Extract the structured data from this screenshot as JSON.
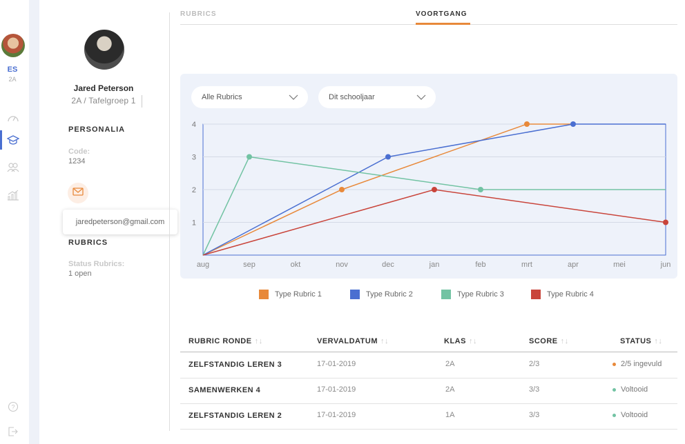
{
  "rail": {
    "initials": "ES",
    "class": "2A",
    "icons": [
      "dashboard-icon",
      "rubrics-icon",
      "group-icon",
      "stats-icon",
      "help-icon",
      "logout-icon"
    ]
  },
  "profile": {
    "name": "Jared Peterson",
    "class": "2A",
    "group": "Tafelgroep 1",
    "personalia_title": "PERSONALIA",
    "code_label": "Code:",
    "code_value": "1234",
    "email": "jaredpeterson@gmail.com",
    "rubrics_title": "RUBRICS",
    "status_label": "Status Rubrics:",
    "status_value": "1 open"
  },
  "tabs": [
    {
      "label": "RUBRICS",
      "active": false
    },
    {
      "label": "VOORTGANG",
      "active": true
    }
  ],
  "filters": {
    "rubric": "Alle Rubrics",
    "period": "Dit schooljaar"
  },
  "colors": {
    "accent": "#e8893a",
    "series1": "#e8893a",
    "series2": "#4a6fd1",
    "series3": "#72c3a3",
    "series4": "#c9443a"
  },
  "chart_data": {
    "type": "line",
    "categories": [
      "aug",
      "sep",
      "okt",
      "nov",
      "dec",
      "jan",
      "feb",
      "mrt",
      "apr",
      "mei",
      "jun"
    ],
    "ylim": [
      0,
      4
    ],
    "yticks": [
      1,
      2,
      3,
      4
    ],
    "grid": true,
    "legend_position": "bottom",
    "series": [
      {
        "name": "Type Rubric 1",
        "points": [
          [
            "aug",
            0
          ],
          [
            "nov",
            2
          ],
          [
            "mrt",
            4
          ],
          [
            "apr",
            4
          ]
        ]
      },
      {
        "name": "Type Rubric 2",
        "points": [
          [
            "aug",
            0
          ],
          [
            "dec",
            3
          ],
          [
            "apr",
            4
          ],
          [
            "jun",
            4
          ]
        ]
      },
      {
        "name": "Type Rubric 3",
        "points": [
          [
            "aug",
            0
          ],
          [
            "sep",
            3
          ],
          [
            "feb",
            2
          ],
          [
            "jun",
            2
          ]
        ]
      },
      {
        "name": "Type Rubric 4",
        "points": [
          [
            "aug",
            0
          ],
          [
            "jan",
            2
          ],
          [
            "jun",
            1
          ]
        ]
      }
    ],
    "markers": [
      {
        "series": 0,
        "at": [
          "nov",
          "mrt"
        ]
      },
      {
        "series": 1,
        "at": [
          "dec",
          "apr"
        ]
      },
      {
        "series": 2,
        "at": [
          "sep",
          "feb"
        ]
      },
      {
        "series": 3,
        "at": [
          "jan",
          "jun"
        ]
      }
    ]
  },
  "table": {
    "headers": [
      "RUBRIC RONDE",
      "VERVALDATUM",
      "KLAS",
      "SCORE",
      "STATUS"
    ],
    "sort_glyph": "↑↓",
    "rows": [
      {
        "name": "ZELFSTANDIG LEREN 3",
        "date": "17-01-2019",
        "klas": "2A",
        "score": "2/3",
        "status": "2/5 ingevuld",
        "status_color": "#e8893a"
      },
      {
        "name": "SAMENWERKEN 4",
        "date": "17-01-2019",
        "klas": "2A",
        "score": "3/3",
        "status": "Voltooid",
        "status_color": "#72c3a3"
      },
      {
        "name": "ZELFSTANDIG LEREN 2",
        "date": "17-01-2019",
        "klas": "1A",
        "score": "3/3",
        "status": "Voltooid",
        "status_color": "#72c3a3"
      }
    ]
  }
}
